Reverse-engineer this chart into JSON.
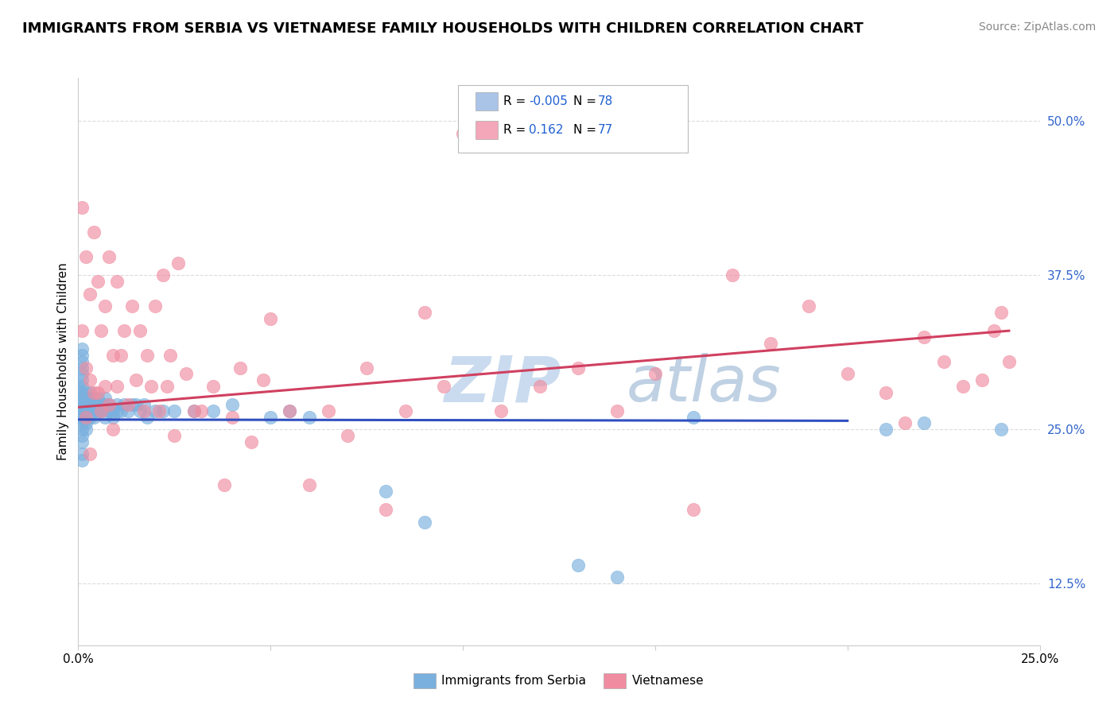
{
  "title": "IMMIGRANTS FROM SERBIA VS VIETNAMESE FAMILY HOUSEHOLDS WITH CHILDREN CORRELATION CHART",
  "source": "Source: ZipAtlas.com",
  "ylabel_label": "Family Households with Children",
  "legend_entries": [
    {
      "label": "Immigrants from Serbia",
      "R": "-0.005",
      "N": "78",
      "color": "#aac4e8"
    },
    {
      "label": "Vietnamese",
      "R": "0.162",
      "N": "77",
      "color": "#f4a7b9"
    }
  ],
  "serbia_scatter": {
    "x": [
      0.0,
      0.0,
      0.0,
      0.0,
      0.0,
      0.0,
      0.001,
      0.001,
      0.001,
      0.001,
      0.001,
      0.001,
      0.001,
      0.001,
      0.001,
      0.001,
      0.001,
      0.001,
      0.001,
      0.001,
      0.001,
      0.001,
      0.001,
      0.001,
      0.002,
      0.002,
      0.002,
      0.002,
      0.002,
      0.002,
      0.002,
      0.003,
      0.003,
      0.003,
      0.003,
      0.003,
      0.004,
      0.004,
      0.004,
      0.005,
      0.005,
      0.005,
      0.006,
      0.006,
      0.007,
      0.007,
      0.007,
      0.008,
      0.008,
      0.009,
      0.009,
      0.01,
      0.01,
      0.011,
      0.012,
      0.013,
      0.014,
      0.015,
      0.016,
      0.017,
      0.018,
      0.02,
      0.022,
      0.025,
      0.03,
      0.035,
      0.04,
      0.05,
      0.055,
      0.06,
      0.08,
      0.09,
      0.13,
      0.14,
      0.16,
      0.21,
      0.22,
      0.24
    ],
    "y": [
      0.265,
      0.27,
      0.275,
      0.28,
      0.285,
      0.26,
      0.25,
      0.255,
      0.26,
      0.265,
      0.27,
      0.275,
      0.28,
      0.285,
      0.29,
      0.295,
      0.24,
      0.245,
      0.23,
      0.225,
      0.3,
      0.305,
      0.31,
      0.315,
      0.26,
      0.265,
      0.27,
      0.275,
      0.28,
      0.255,
      0.25,
      0.27,
      0.265,
      0.26,
      0.275,
      0.28,
      0.265,
      0.26,
      0.27,
      0.27,
      0.265,
      0.275,
      0.265,
      0.27,
      0.26,
      0.27,
      0.275,
      0.265,
      0.27,
      0.26,
      0.265,
      0.27,
      0.265,
      0.265,
      0.27,
      0.265,
      0.27,
      0.27,
      0.265,
      0.27,
      0.26,
      0.265,
      0.265,
      0.265,
      0.265,
      0.265,
      0.27,
      0.26,
      0.265,
      0.26,
      0.2,
      0.175,
      0.14,
      0.13,
      0.26,
      0.25,
      0.255,
      0.25
    ]
  },
  "vietnamese_scatter": {
    "x": [
      0.001,
      0.001,
      0.002,
      0.002,
      0.002,
      0.003,
      0.003,
      0.003,
      0.004,
      0.004,
      0.005,
      0.005,
      0.006,
      0.006,
      0.007,
      0.007,
      0.008,
      0.008,
      0.009,
      0.009,
      0.01,
      0.01,
      0.011,
      0.012,
      0.013,
      0.014,
      0.015,
      0.016,
      0.017,
      0.018,
      0.019,
      0.02,
      0.021,
      0.022,
      0.023,
      0.024,
      0.025,
      0.026,
      0.028,
      0.03,
      0.032,
      0.035,
      0.038,
      0.04,
      0.042,
      0.045,
      0.048,
      0.05,
      0.055,
      0.06,
      0.065,
      0.07,
      0.075,
      0.08,
      0.085,
      0.09,
      0.095,
      0.1,
      0.11,
      0.12,
      0.13,
      0.14,
      0.15,
      0.16,
      0.17,
      0.18,
      0.19,
      0.2,
      0.21,
      0.215,
      0.22,
      0.225,
      0.23,
      0.235,
      0.238,
      0.24,
      0.242
    ],
    "y": [
      0.43,
      0.33,
      0.39,
      0.3,
      0.26,
      0.36,
      0.29,
      0.23,
      0.41,
      0.28,
      0.37,
      0.28,
      0.33,
      0.265,
      0.35,
      0.285,
      0.39,
      0.27,
      0.31,
      0.25,
      0.37,
      0.285,
      0.31,
      0.33,
      0.27,
      0.35,
      0.29,
      0.33,
      0.265,
      0.31,
      0.285,
      0.35,
      0.265,
      0.375,
      0.285,
      0.31,
      0.245,
      0.385,
      0.295,
      0.265,
      0.265,
      0.285,
      0.205,
      0.26,
      0.3,
      0.24,
      0.29,
      0.34,
      0.265,
      0.205,
      0.265,
      0.245,
      0.3,
      0.185,
      0.265,
      0.345,
      0.285,
      0.49,
      0.265,
      0.285,
      0.3,
      0.265,
      0.295,
      0.185,
      0.375,
      0.32,
      0.35,
      0.295,
      0.28,
      0.255,
      0.325,
      0.305,
      0.285,
      0.29,
      0.33,
      0.345,
      0.305
    ]
  },
  "serbia_line": {
    "x0": 0.0,
    "x1": 0.2,
    "y0": 0.258,
    "y1": 0.257
  },
  "vietnamese_line": {
    "x0": 0.0,
    "x1": 0.242,
    "y0": 0.268,
    "y1": 0.33
  },
  "xlim": [
    0.0,
    0.25
  ],
  "ylim": [
    0.075,
    0.535
  ],
  "serbia_color": "#7ab0de",
  "vietnamese_color": "#f08ca0",
  "serbia_line_color": "#3050c0",
  "vietnamese_line_color": "#d04060",
  "background_color": "#ffffff",
  "watermark_text": "ZIP",
  "watermark_text2": "atlas",
  "watermark_color1": "#c5d8ee",
  "watermark_color2": "#b8cce0",
  "grid_color": "#cccccc",
  "title_fontsize": 13,
  "axis_label_fontsize": 11,
  "tick_fontsize": 11,
  "legend_r_color": "#dd2244",
  "legend_n_color": "#2060d0",
  "ytick_color": "#3366cc"
}
